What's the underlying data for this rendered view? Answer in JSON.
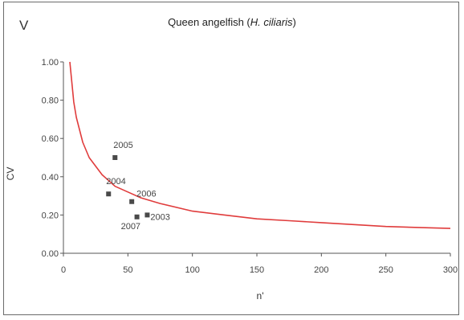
{
  "panel_label": "V",
  "chart_data": {
    "type": "scatter",
    "title": "Queen angelfish (H. ciliaris)",
    "title_parts": [
      "Queen angelfish (",
      "H. ciliaris",
      ")"
    ],
    "xlabel": "n'",
    "ylabel": "CV",
    "xlim": [
      0,
      300
    ],
    "ylim": [
      0.0,
      1.0
    ],
    "x_ticks": [
      0,
      50,
      100,
      150,
      200,
      250,
      300
    ],
    "x_tick_labels": [
      "0",
      "50",
      "100",
      "150",
      "200",
      "250",
      "300"
    ],
    "y_ticks": [
      0.0,
      0.2,
      0.4,
      0.6,
      0.8,
      1.0
    ],
    "y_tick_labels": [
      "0.00",
      "0.20",
      "0.40",
      "0.60",
      "0.80",
      "1.00"
    ],
    "grid": false,
    "legend": "none",
    "points": [
      {
        "label": "2005",
        "x": 40,
        "y": 0.5
      },
      {
        "label": "2004",
        "x": 35,
        "y": 0.31
      },
      {
        "label": "2006",
        "x": 53,
        "y": 0.27
      },
      {
        "label": "2007",
        "x": 57,
        "y": 0.19
      },
      {
        "label": "2003",
        "x": 65,
        "y": 0.2
      }
    ],
    "curve": {
      "x": [
        5,
        8,
        10,
        15,
        20,
        30,
        40,
        50,
        60,
        75,
        100,
        125,
        150,
        175,
        200,
        225,
        250,
        275,
        300
      ],
      "y": [
        1.0,
        0.79,
        0.71,
        0.58,
        0.5,
        0.41,
        0.35,
        0.32,
        0.29,
        0.26,
        0.22,
        0.2,
        0.18,
        0.17,
        0.16,
        0.15,
        0.14,
        0.135,
        0.13
      ],
      "color": "#e03c3c"
    },
    "marker_color": "#4a4a4a",
    "axis_color": "#555555"
  }
}
